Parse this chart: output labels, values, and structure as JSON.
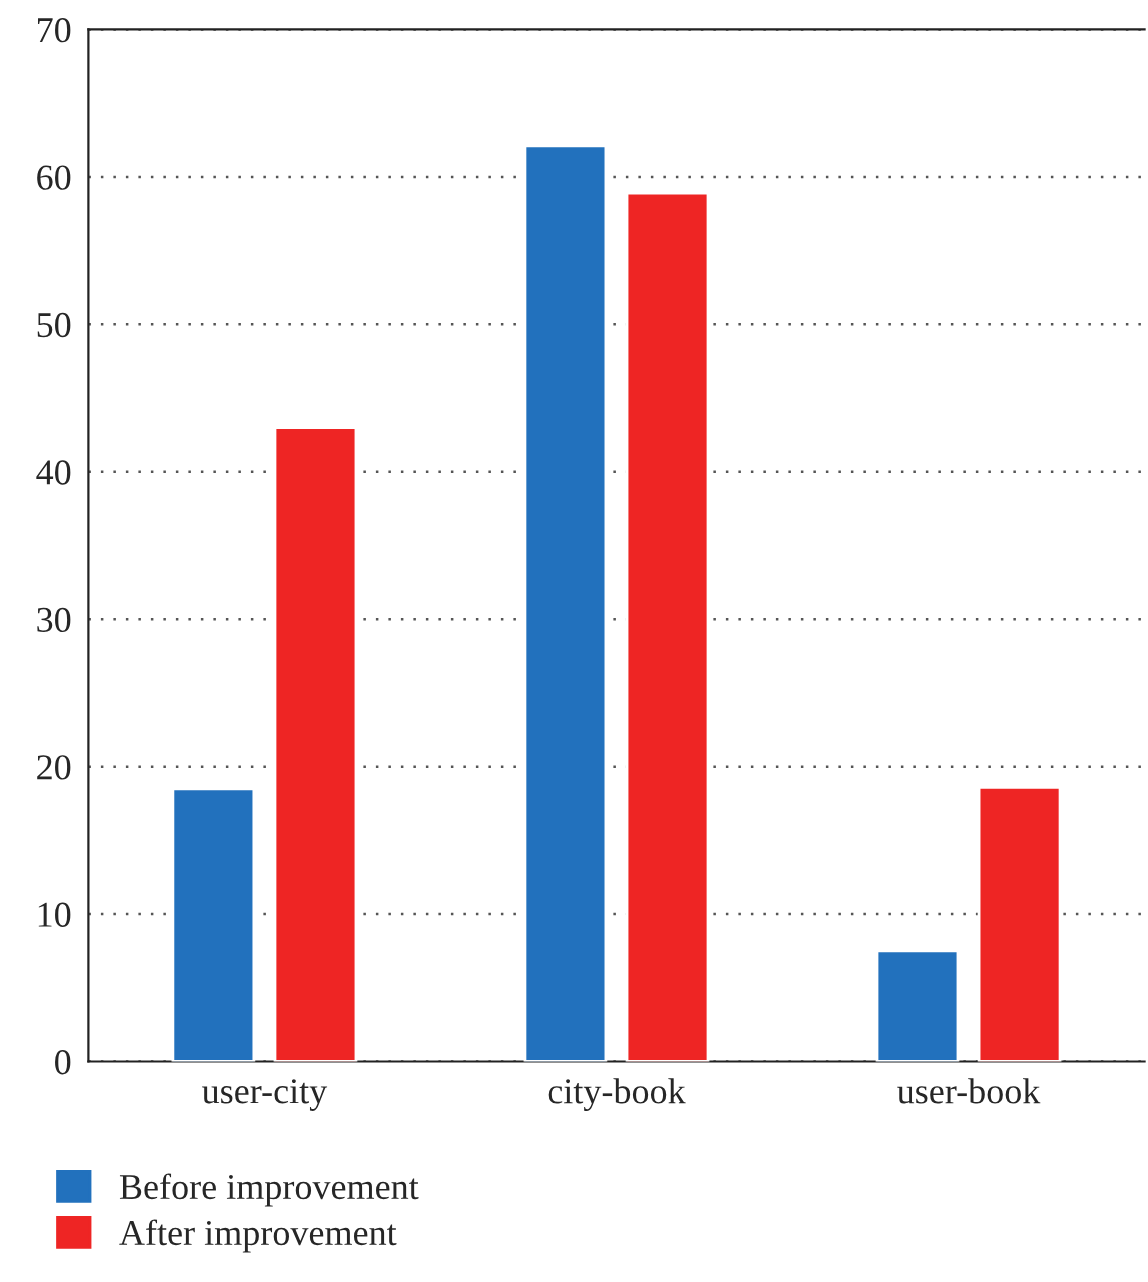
{
  "chart_data": {
    "type": "bar",
    "categories": [
      "user-city",
      "city-book",
      "user-book"
    ],
    "series": [
      {
        "name": "Before improvement",
        "color": "#2271bd",
        "values": [
          18.5,
          62.1,
          7.5
        ]
      },
      {
        "name": "After improvement",
        "color": "#ee2524",
        "values": [
          43.0,
          58.9,
          18.6
        ]
      }
    ],
    "ylim": [
      0,
      70
    ],
    "yticks": [
      0,
      10,
      20,
      30,
      40,
      50,
      60,
      70
    ],
    "grid": "y",
    "legend": "bottom left"
  }
}
